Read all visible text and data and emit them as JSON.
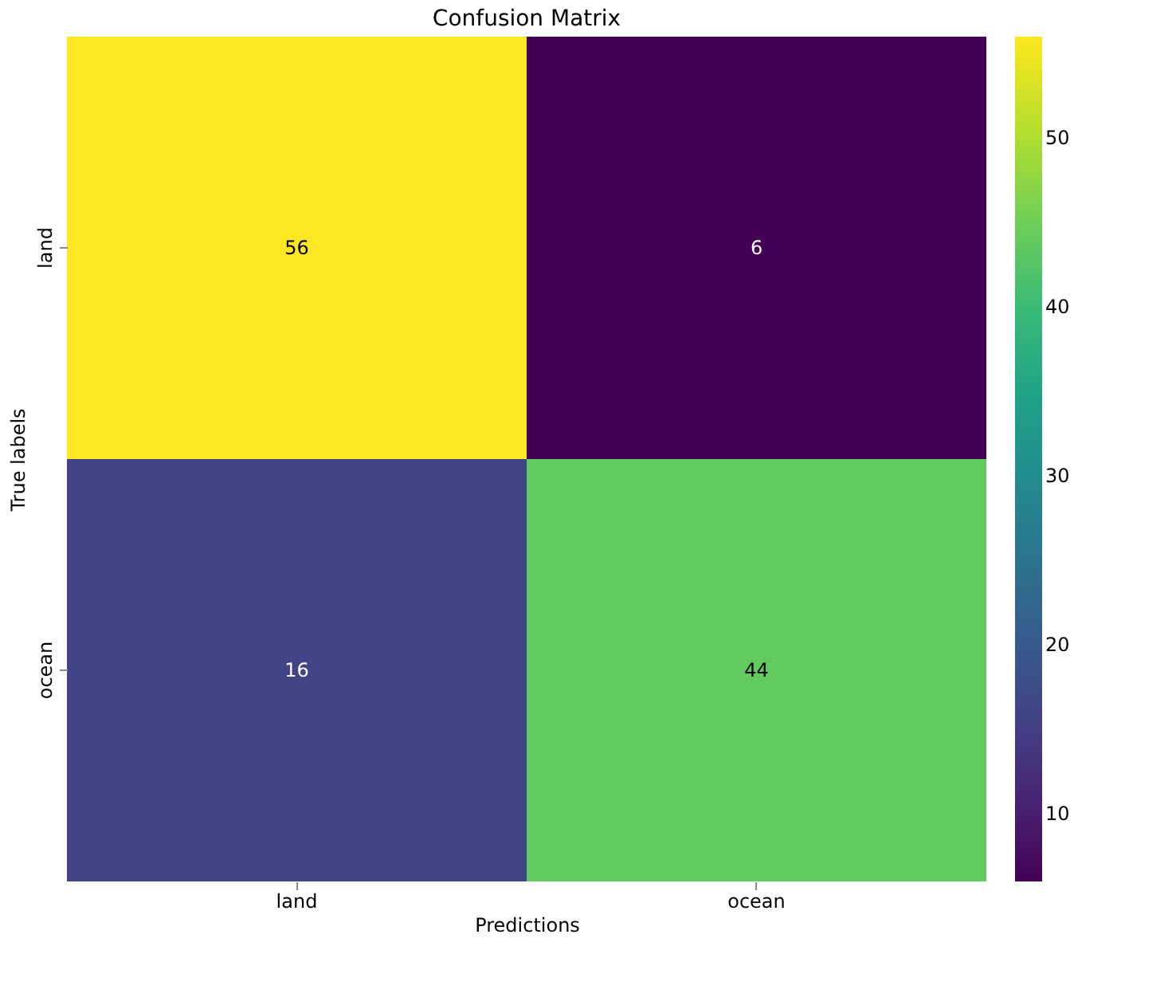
{
  "chart_data": {
    "type": "heatmap",
    "title": "Confusion Matrix",
    "xlabel": "Predictions",
    "ylabel": "True labels",
    "categories": [
      "land",
      "ocean"
    ],
    "y_categories": [
      "land",
      "ocean"
    ],
    "cells": [
      [
        56,
        6
      ],
      [
        16,
        44
      ]
    ],
    "clim": [
      6,
      56
    ],
    "cticks": [
      10,
      20,
      30,
      40,
      50
    ],
    "data_labels": true
  }
}
